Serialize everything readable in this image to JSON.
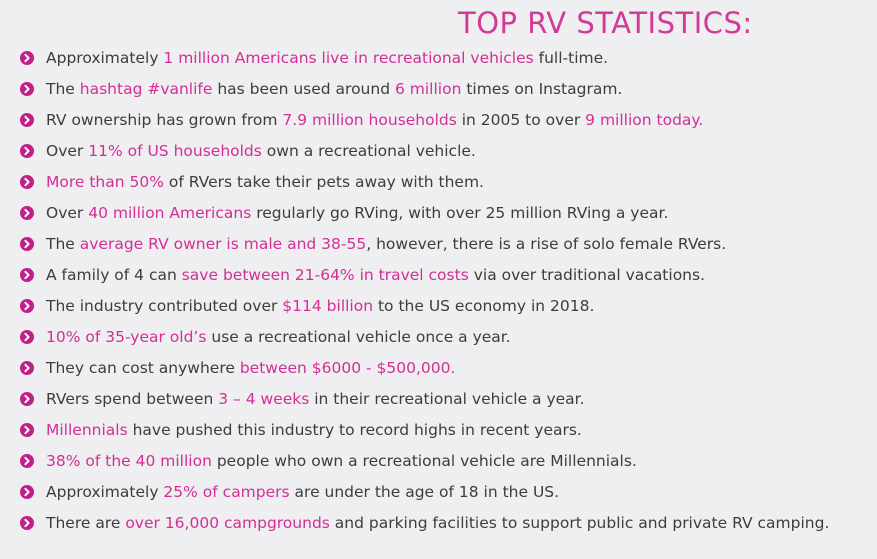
{
  "title": "TOP RV STATISTICS:",
  "accent_color": "#d22f97",
  "bullet_icon": "chevron-right-circle-icon",
  "items": [
    {
      "p0": "Approximately ",
      "h0": "1 million Americans live in recreational vehicles",
      "p1": " full-time."
    },
    {
      "p0": "The ",
      "h0": "hashtag #vanlife",
      "p1": " has been used around ",
      "h1": "6 million",
      "p2": " times on Instagram."
    },
    {
      "p0": "RV ownership has grown from ",
      "h0": "7.9 million households",
      "p1": " in 2005 to over ",
      "h1": "9 million today."
    },
    {
      "p0": "Over ",
      "h0": "11% of US households",
      "p1": " own a recreational vehicle."
    },
    {
      "h0": "More than 50%",
      "p1": " of RVers take their pets away with them."
    },
    {
      "p0": "Over ",
      "h0": "40 million Americans",
      "p1": " regularly go RVing, with over 25 million RVing a year."
    },
    {
      "p0": "The ",
      "h0": "average RV owner is male and 38-55",
      "p1": ", however, there is a rise of solo female RVers."
    },
    {
      "p0": "A family of 4 can ",
      "h0": "save between 21-64% in travel costs",
      "p1": " via over traditional vacations."
    },
    {
      "p0": "The industry contributed over ",
      "h0": "$114 billion",
      "p1": " to the US economy in 2018."
    },
    {
      "h0": "10% of 35-year old’s",
      "p1": " use a recreational vehicle once a year."
    },
    {
      "p0": "They can cost anywhere ",
      "h0": "between $6000 - $500,000."
    },
    {
      "p0": "RVers spend between ",
      "h0": "3 – 4 weeks",
      "p1": " in their recreational vehicle a year."
    },
    {
      "h0": "Millennials",
      "p1": " have pushed this industry to record highs in recent years."
    },
    {
      "h0": "38% of the 40 million",
      "p1": " people who own a recreational vehicle are Millennials."
    },
    {
      "p0": "Approximately ",
      "h0": "25% of campers",
      "p1": " are under the age of 18 in the US."
    },
    {
      "p0": "There are ",
      "h0": "over 16,000 campgrounds",
      "p1": " and parking facilities to support public and private RV camping."
    }
  ]
}
